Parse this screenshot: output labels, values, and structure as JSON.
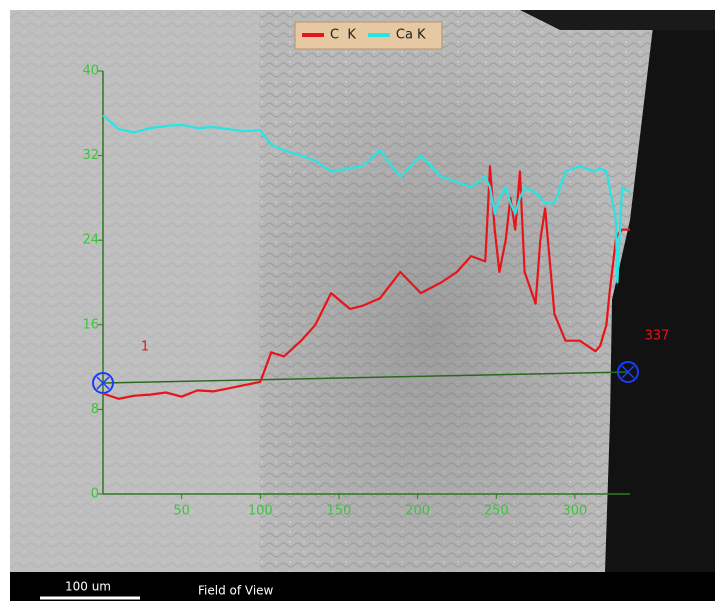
{
  "chart_data": {
    "type": "line",
    "x": [
      0,
      10,
      20,
      30,
      40,
      50,
      60,
      70,
      80,
      90,
      100,
      107,
      115,
      126,
      135,
      145,
      157,
      165,
      176,
      189,
      202,
      215,
      225,
      234,
      243,
      246,
      249,
      252,
      256,
      259,
      262,
      265,
      268,
      275,
      278,
      281,
      287,
      294,
      303,
      313,
      316,
      320,
      322,
      326,
      327,
      330,
      335
    ],
    "series": [
      {
        "name": "C  K",
        "color": "#e8141a",
        "values": [
          9.5,
          9,
          9.3,
          9.4,
          9.6,
          9.2,
          9.8,
          9.7,
          10,
          10.3,
          10.6,
          13.4,
          13,
          14.5,
          16,
          19,
          17.5,
          17.8,
          18.5,
          21,
          19,
          20,
          21,
          22.5,
          22,
          31,
          25,
          21,
          24,
          28,
          25,
          30.5,
          21,
          18,
          24,
          27,
          17,
          14.5,
          14.5,
          13.5,
          14,
          16,
          19,
          24,
          24.5,
          25,
          25
        ]
      },
      {
        "name": "Ca K",
        "color": "#27e5e5",
        "values": [
          35.8,
          34.5,
          34.2,
          34.6,
          34.8,
          34.9,
          34.6,
          34.7,
          34.5,
          34.3,
          34.4,
          33,
          32.5,
          32,
          31.5,
          30.5,
          30.8,
          31,
          32.5,
          30,
          32,
          30,
          29.5,
          29,
          30,
          29,
          26.5,
          28,
          29,
          27.5,
          26.5,
          28,
          29,
          28.5,
          28,
          27.5,
          27.5,
          30.5,
          31,
          30.5,
          30.8,
          30.5,
          29,
          26,
          20,
          29,
          28.5
        ]
      }
    ],
    "xlim": [
      0,
      335
    ],
    "ylim": [
      0,
      40
    ],
    "xticks": [
      50,
      100,
      150,
      200,
      250,
      300
    ],
    "yticks": [
      0,
      8,
      16,
      24,
      32,
      40
    ],
    "grid": false,
    "legend": "top",
    "annotations": [
      "1",
      "337"
    ]
  },
  "footer": {
    "scale_bar": "100 um",
    "label": "Field of View"
  }
}
